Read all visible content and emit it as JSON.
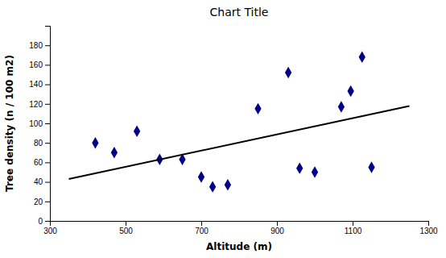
{
  "chart_data": {
    "type": "scatter",
    "title": "Chart Title",
    "xlabel": "Altitude (m)",
    "ylabel": "Tree density (n / 100 m2)",
    "series": [
      {
        "type": "scatter",
        "color": "#00008B",
        "marker": "diamond",
        "x": [
          420,
          470,
          530,
          590,
          650,
          700,
          730,
          770,
          850,
          930,
          960,
          1000,
          1070,
          1095,
          1125,
          1150
        ],
        "values": [
          80,
          70,
          92,
          63,
          63,
          45,
          35,
          37,
          115,
          152,
          54,
          50,
          117,
          133,
          168,
          55
        ]
      },
      {
        "type": "line",
        "color": "#000000",
        "line_style": "solid",
        "x": [
          350,
          1250
        ],
        "values": [
          43.05,
          117.75
        ]
      }
    ],
    "xlim": [
      300,
      1300
    ],
    "ylim": [
      0,
      200
    ],
    "xticks": [
      300,
      500,
      700,
      900,
      1100,
      1300
    ],
    "yticks": [
      0,
      20,
      40,
      60,
      80,
      100,
      120,
      140,
      160,
      180
    ],
    "grid": false
  }
}
